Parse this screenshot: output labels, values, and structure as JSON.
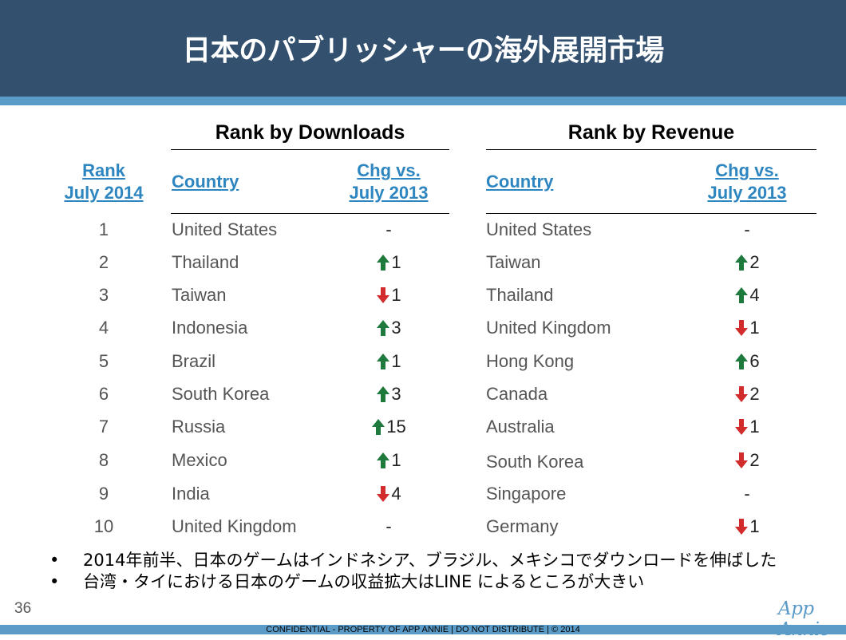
{
  "title": "日本のパブリッシャーの海外展開市場",
  "downloads": {
    "heading": "Rank by Downloads",
    "country_header": "Country",
    "chg_header_1": "Chg vs.",
    "chg_header_2": "July 2013",
    "rows": [
      {
        "country": "United States",
        "dir": "none",
        "chg": "-"
      },
      {
        "country": "Thailand",
        "dir": "up",
        "chg": "1"
      },
      {
        "country": "Taiwan",
        "dir": "down",
        "chg": "1"
      },
      {
        "country": "Indonesia",
        "dir": "up",
        "chg": "3"
      },
      {
        "country": "Brazil",
        "dir": "up",
        "chg": "1"
      },
      {
        "country": "South Korea",
        "dir": "up",
        "chg": "3"
      },
      {
        "country": "Russia",
        "dir": "up",
        "chg": "15"
      },
      {
        "country": "Mexico",
        "dir": "up",
        "chg": "1"
      },
      {
        "country": "India",
        "dir": "down",
        "chg": "4"
      },
      {
        "country": "United Kingdom",
        "dir": "none",
        "chg": "-"
      }
    ]
  },
  "revenue": {
    "heading": "Rank by Revenue",
    "country_header": "Country",
    "chg_header_1": "Chg vs.",
    "chg_header_2": "July 2013",
    "rows": [
      {
        "country": "United States",
        "dir": "none",
        "chg": "-"
      },
      {
        "country": "Taiwan",
        "dir": "up",
        "chg": "2"
      },
      {
        "country": "Thailand",
        "dir": "up",
        "chg": "4"
      },
      {
        "country": "United Kingdom",
        "dir": "down",
        "chg": "1"
      },
      {
        "country": "Hong Kong",
        "dir": "up",
        "chg": "6"
      },
      {
        "country": "Canada",
        "dir": "down",
        "chg": "2"
      },
      {
        "country": "Australia",
        "dir": "down",
        "chg": "1"
      },
      {
        "country": "South Korea",
        "dir": "down",
        "chg": "2"
      },
      {
        "country": "Singapore",
        "dir": "none",
        "chg": "-"
      },
      {
        "country": "Germany",
        "dir": "down",
        "chg": "1"
      }
    ]
  },
  "rank_header_1": "Rank",
  "rank_header_2": "July 2014",
  "ranks": [
    "1",
    "2",
    "3",
    "4",
    "5",
    "6",
    "7",
    "8",
    "9",
    "10"
  ],
  "bullets": [
    "2014年前半、日本のゲームはインドネシア、ブラジル、メキシコでダウンロードを伸ばした",
    "台湾・タイにおける日本のゲームの収益拡大はLINE によるところが大きい"
  ],
  "bullet_glyph": "•",
  "page_number": "36",
  "logo_text": "App Annie",
  "footer": "CONFIDENTIAL - PROPERTY OF APP ANNIE  |  DO NOT DISTRIBUTE  |  © 2014",
  "colors": {
    "header": "#33506f",
    "stripe": "#5b9bc8",
    "link": "#2e86c1",
    "up": "#1e7a3c",
    "down": "#d12b2b"
  }
}
